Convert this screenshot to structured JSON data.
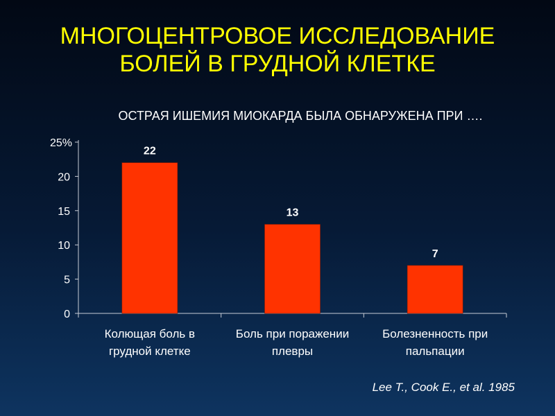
{
  "slide": {
    "title_line1": "МНОГОЦЕНТРОВОЕ ИССЛЕДОВАНИЕ",
    "title_line2": "БОЛЕЙ В ГРУДНОЙ КЛЕТКЕ",
    "subtitle": "ОСТРАЯ ИШЕМИЯ МИОКАРДА БЫЛА ОБНАРУЖЕНА ПРИ ….",
    "citation": "Lee T., Cook E., et al. 1985"
  },
  "colors": {
    "title": "#ffff00",
    "bar": "#ff3300",
    "text": "#ffffff"
  },
  "chart_data": {
    "type": "bar",
    "categories": [
      [
        "Колющая боль в",
        "грудной клетке"
      ],
      [
        "Боль при поражении",
        "плевры"
      ],
      [
        "Болезненность при",
        "пальпации"
      ]
    ],
    "values": [
      22,
      13,
      7
    ],
    "data_labels": [
      "22",
      "13",
      "7"
    ],
    "yticks": [
      "0",
      "5",
      "10",
      "15",
      "20",
      "25%"
    ],
    "ylim": [
      0,
      25
    ],
    "grid": false,
    "legend": false
  }
}
